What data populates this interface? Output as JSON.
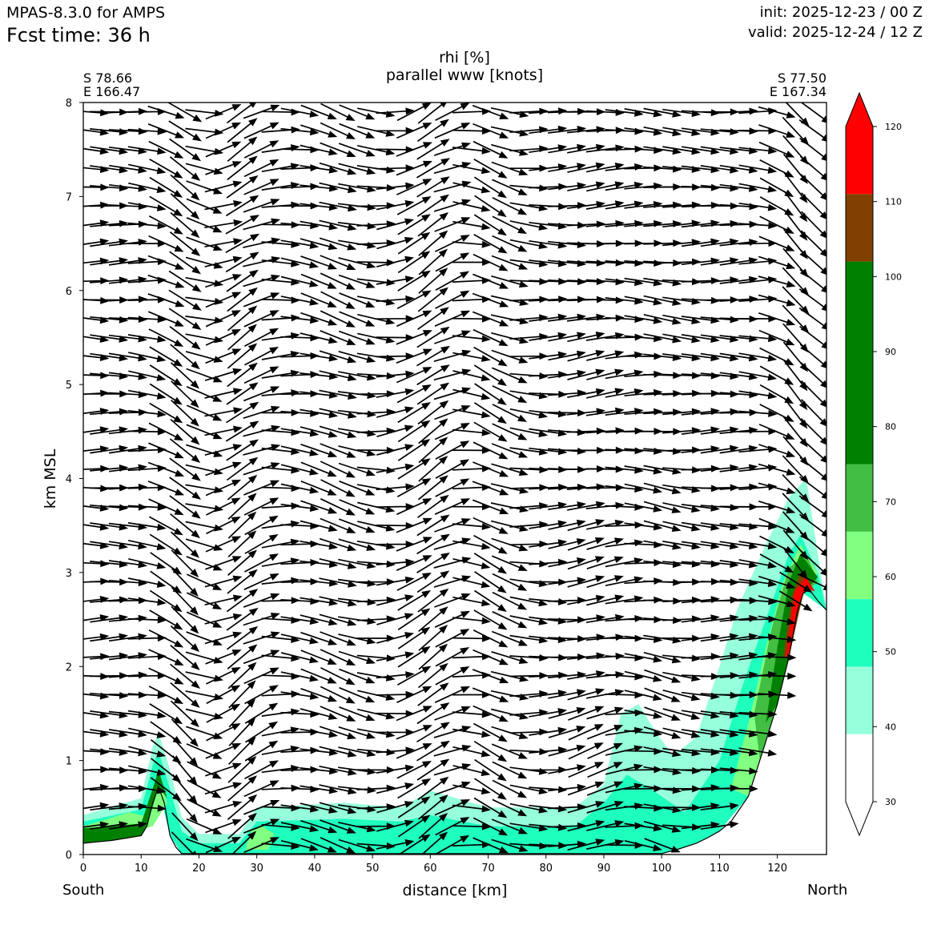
{
  "header": {
    "model": "MPAS-8.3.0 for AMPS",
    "forecast": "Fcst time:   36 h",
    "init": "init: 2025-12-23 / 00 Z",
    "valid": "valid: 2025-12-24 / 12 Z"
  },
  "cross_section": {
    "start_point": {
      "lat": "S 78.66",
      "lon": "E 166.47"
    },
    "end_point": {
      "lat": "S 77.50",
      "lon": "E 167.34"
    },
    "left_end": "South",
    "right_end": "North"
  },
  "chart_data": {
    "type": "heatmap",
    "title": "rhi [%]",
    "subtitle": "parallel www [knots]",
    "xlabel": "distance [km]",
    "ylabel": "km MSL",
    "xlim": [
      0,
      128.5
    ],
    "ylim": [
      0,
      8
    ],
    "x_ticks": [
      0,
      10,
      20,
      30,
      40,
      50,
      60,
      70,
      80,
      90,
      100,
      110,
      120
    ],
    "y_ticks": [
      0,
      1,
      2,
      3,
      4,
      5,
      6,
      7,
      8
    ],
    "terrain_km": [
      [
        0,
        0.12
      ],
      [
        5,
        0.15
      ],
      [
        10,
        0.2
      ],
      [
        11,
        0.3
      ],
      [
        12,
        0.55
      ],
      [
        13,
        0.72
      ],
      [
        14,
        0.55
      ],
      [
        15,
        0.2
      ],
      [
        16,
        0.08
      ],
      [
        17,
        0.01
      ],
      [
        100,
        0.01
      ],
      [
        103,
        0.06
      ],
      [
        106,
        0.12
      ],
      [
        108,
        0.18
      ],
      [
        110,
        0.25
      ],
      [
        112,
        0.35
      ],
      [
        115,
        0.62
      ],
      [
        118,
        1.2
      ],
      [
        120,
        1.6
      ],
      [
        122,
        2.1
      ],
      [
        123.5,
        2.6
      ],
      [
        124.5,
        2.78
      ],
      [
        125.5,
        2.82
      ],
      [
        127,
        2.7
      ],
      [
        128.5,
        2.6
      ]
    ],
    "colorbar": {
      "ticks": [
        30,
        40,
        50,
        60,
        70,
        80,
        90,
        100,
        110,
        120
      ],
      "levels": [
        {
          "from": 30,
          "to": 39,
          "color": "#ffffff"
        },
        {
          "from": 39,
          "to": 48,
          "color": "#96ffdc"
        },
        {
          "from": 48,
          "to": 57,
          "color": "#1effbe"
        },
        {
          "from": 57,
          "to": 66,
          "color": "#80ff80"
        },
        {
          "from": 66,
          "to": 75,
          "color": "#42be42"
        },
        {
          "from": 75,
          "to": 102,
          "color": "#008000"
        },
        {
          "from": 102,
          "to": 111,
          "color": "#804000"
        },
        {
          "from": 111,
          "to": 120,
          "color": "#ff0000"
        }
      ]
    },
    "rhi_regions": [
      {
        "level": "40-50",
        "color": "#96ffdc",
        "points": [
          [
            0,
            0.12
          ],
          [
            0,
            0.42
          ],
          [
            10,
            0.6
          ],
          [
            12,
            1.15
          ],
          [
            13,
            1.3
          ],
          [
            15,
            0.9
          ],
          [
            17,
            0.4
          ],
          [
            20,
            0.22
          ],
          [
            27,
            0.22
          ],
          [
            30,
            0.5
          ],
          [
            45,
            0.55
          ],
          [
            55,
            0.5
          ],
          [
            60,
            0.68
          ],
          [
            70,
            0.5
          ],
          [
            85,
            0.5
          ],
          [
            90,
            0.75
          ],
          [
            93,
            1.5
          ],
          [
            96,
            1.6
          ],
          [
            99,
            1.3
          ],
          [
            102,
            1.05
          ],
          [
            106,
            1.25
          ],
          [
            110,
            2.0
          ],
          [
            113,
            2.6
          ],
          [
            118,
            3.3
          ],
          [
            122,
            3.8
          ],
          [
            125,
            4.0
          ],
          [
            128.5,
            2.6
          ],
          [
            124.5,
            2.78
          ],
          [
            120,
            1.6
          ],
          [
            115,
            0.62
          ],
          [
            110,
            0.25
          ],
          [
            106,
            0.12
          ],
          [
            100,
            0.01
          ],
          [
            17,
            0.01
          ],
          [
            15,
            0.2
          ],
          [
            13,
            0.72
          ],
          [
            11,
            0.3
          ],
          [
            10,
            0.2
          ]
        ]
      },
      {
        "level": "50-60",
        "color": "#1effbe",
        "points": [
          [
            0,
            0.15
          ],
          [
            0,
            0.35
          ],
          [
            10,
            0.48
          ],
          [
            12,
            0.95
          ],
          [
            13,
            1.1
          ],
          [
            15,
            0.7
          ],
          [
            17,
            0.25
          ],
          [
            20,
            0.12
          ],
          [
            27,
            0.12
          ],
          [
            30,
            0.35
          ],
          [
            45,
            0.38
          ],
          [
            55,
            0.35
          ],
          [
            60,
            0.42
          ],
          [
            70,
            0.3
          ],
          [
            85,
            0.3
          ],
          [
            90,
            0.55
          ],
          [
            94,
            0.85
          ],
          [
            98,
            0.7
          ],
          [
            104,
            0.45
          ],
          [
            110,
            1.0
          ],
          [
            114,
            1.8
          ],
          [
            118,
            2.5
          ],
          [
            122,
            3.2
          ],
          [
            124,
            3.4
          ],
          [
            127,
            3.0
          ],
          [
            128.5,
            2.6
          ],
          [
            124.5,
            2.78
          ],
          [
            120,
            1.6
          ],
          [
            115,
            0.62
          ],
          [
            110,
            0.25
          ],
          [
            106,
            0.12
          ],
          [
            100,
            0.01
          ],
          [
            17,
            0.01
          ],
          [
            15,
            0.2
          ],
          [
            13,
            0.72
          ],
          [
            11,
            0.3
          ],
          [
            10,
            0.2
          ]
        ]
      },
      {
        "level": "60-70",
        "color": "#80ff80",
        "points": [
          [
            0,
            0.18
          ],
          [
            0,
            0.3
          ],
          [
            8,
            0.45
          ],
          [
            11,
            0.4
          ],
          [
            13,
            0.85
          ],
          [
            14.5,
            0.55
          ],
          [
            12,
            0.3
          ],
          [
            5,
            0.2
          ]
        ]
      },
      {
        "level": "60-70",
        "color": "#80ff80",
        "points": [
          [
            28,
            0.05
          ],
          [
            29,
            0.25
          ],
          [
            31,
            0.3
          ],
          [
            33,
            0.22
          ],
          [
            32,
            0.05
          ]
        ]
      },
      {
        "level": "60-70",
        "color": "#80ff80",
        "points": [
          [
            112,
            0.7
          ],
          [
            115,
            1.4
          ],
          [
            118,
            2.2
          ],
          [
            121,
            2.9
          ],
          [
            124,
            3.3
          ],
          [
            127,
            3.0
          ],
          [
            124.5,
            2.78
          ],
          [
            120,
            1.6
          ],
          [
            115,
            0.62
          ]
        ]
      },
      {
        "level": "70-80",
        "color": "#42be42",
        "points": [
          [
            116,
            1.5
          ],
          [
            119,
            2.4
          ],
          [
            122,
            3.05
          ],
          [
            125,
            3.2
          ],
          [
            127,
            2.9
          ],
          [
            124.5,
            2.78
          ],
          [
            120,
            1.6
          ],
          [
            117,
            1.0
          ]
        ]
      },
      {
        "level": "80-100",
        "color": "#008000",
        "points": [
          [
            0,
            0.12
          ],
          [
            0,
            0.28
          ],
          [
            5,
            0.3
          ],
          [
            10,
            0.33
          ],
          [
            12,
            0.7
          ],
          [
            13,
            0.9
          ],
          [
            14.5,
            0.6
          ],
          [
            13,
            0.72
          ],
          [
            11,
            0.3
          ],
          [
            10,
            0.2
          ],
          [
            5,
            0.15
          ]
        ]
      },
      {
        "level": "80-100",
        "color": "#008000",
        "points": [
          [
            118,
            1.4
          ],
          [
            120,
            2.2
          ],
          [
            122,
            2.9
          ],
          [
            124,
            3.2
          ],
          [
            127,
            2.95
          ],
          [
            124.5,
            2.78
          ],
          [
            122,
            2.1
          ],
          [
            120,
            1.6
          ]
        ]
      },
      {
        "level": "100-110",
        "color": "#804000",
        "points": [
          [
            121,
            2.1
          ],
          [
            122.5,
            2.75
          ],
          [
            124,
            3.0
          ],
          [
            125.5,
            2.9
          ],
          [
            124.5,
            2.78
          ],
          [
            122,
            2.1
          ]
        ]
      },
      {
        "level": "110-120",
        "color": "#ff0000",
        "points": [
          [
            121.5,
            2.1
          ],
          [
            123,
            2.8
          ],
          [
            125,
            2.95
          ],
          [
            126.5,
            2.8
          ],
          [
            125.5,
            2.82
          ],
          [
            124.5,
            2.78
          ],
          [
            123.5,
            2.6
          ],
          [
            122,
            2.1
          ]
        ]
      }
    ],
    "wind_vectors": {
      "quantity": "parallel www [knots]",
      "x_spacing_km": 3.3,
      "z_spacing_km": 0.2,
      "base_direction": "left to right (northward)",
      "wave_disturbances": [
        {
          "x_km": 17,
          "descent_zone": true
        },
        {
          "x_km": 27,
          "ascent_zone": true
        },
        {
          "x_km": 60,
          "ascent_zone": true
        },
        {
          "x_km": 124,
          "descent_zone": true
        }
      ]
    }
  }
}
